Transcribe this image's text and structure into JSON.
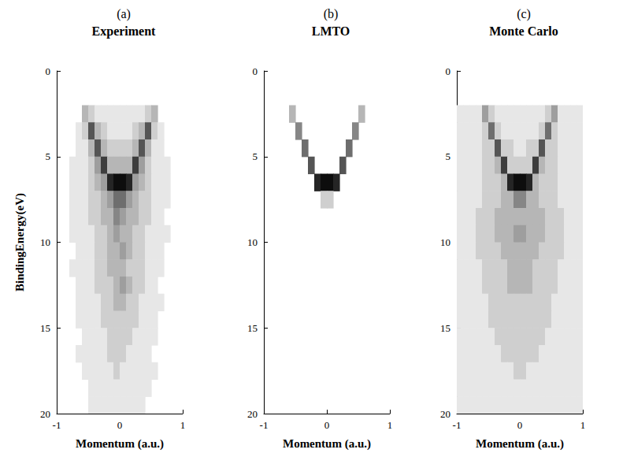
{
  "chart_data": [
    {
      "type": "heatmap",
      "panel_label": "(a)",
      "title": "Experiment",
      "xlabel": "Momentum (a.u.)",
      "ylabel": "BindingEnergy(eV)",
      "xlim": [
        -1,
        1
      ],
      "ylim": [
        20,
        0
      ],
      "xticks": [
        -1,
        0,
        1
      ],
      "yticks": [
        0,
        5,
        10,
        15,
        20
      ],
      "z_range": [
        0,
        10
      ],
      "x": [
        -0.95,
        -0.85,
        -0.75,
        -0.65,
        -0.55,
        -0.45,
        -0.35,
        -0.25,
        -0.15,
        -0.05,
        0.05,
        0.15,
        0.25,
        0.35,
        0.45,
        0.55,
        0.65,
        0.75,
        0.85,
        0.95
      ],
      "y": [
        0.5,
        1.5,
        2.5,
        3.5,
        4.5,
        5.5,
        6.5,
        7.5,
        8.5,
        9.5,
        10.5,
        11.5,
        12.5,
        13.5,
        14.5,
        15.5,
        16.5,
        17.5,
        18.5,
        19.5
      ],
      "z": [
        [
          0,
          0,
          0,
          0,
          0,
          0,
          0,
          0,
          0,
          0,
          0,
          0,
          0,
          0,
          0,
          0,
          0,
          0,
          0,
          0
        ],
        [
          0,
          0,
          0,
          0,
          0,
          0,
          0,
          0,
          0,
          0,
          0,
          0,
          0,
          0,
          0,
          0,
          0,
          0,
          0,
          0
        ],
        [
          0,
          0,
          0,
          0,
          3,
          2,
          1,
          1,
          1,
          1,
          1,
          1,
          1,
          1,
          2,
          3,
          0,
          0,
          0,
          0
        ],
        [
          0,
          0,
          0,
          1,
          2,
          7,
          3,
          2,
          1,
          1,
          1,
          1,
          2,
          3,
          7,
          2,
          1,
          0,
          0,
          0
        ],
        [
          0,
          0,
          0,
          1,
          1,
          3,
          7,
          3,
          2,
          2,
          2,
          2,
          3,
          7,
          3,
          1,
          1,
          0,
          0,
          0
        ],
        [
          0,
          0,
          1,
          1,
          1,
          2,
          4,
          8,
          3,
          3,
          3,
          3,
          8,
          4,
          2,
          1,
          1,
          1,
          0,
          0
        ],
        [
          0,
          0,
          1,
          1,
          1,
          2,
          3,
          4,
          9,
          10,
          10,
          9,
          4,
          3,
          2,
          1,
          1,
          1,
          0,
          0
        ],
        [
          0,
          0,
          1,
          1,
          1,
          2,
          2,
          3,
          4,
          6,
          6,
          4,
          3,
          2,
          2,
          1,
          1,
          1,
          0,
          0
        ],
        [
          0,
          0,
          1,
          1,
          1,
          2,
          2,
          3,
          3,
          5,
          4,
          3,
          3,
          2,
          2,
          1,
          1,
          0,
          0,
          0
        ],
        [
          0,
          0,
          1,
          1,
          1,
          1,
          2,
          2,
          3,
          4,
          3,
          3,
          2,
          2,
          1,
          1,
          1,
          1,
          0,
          0
        ],
        [
          0,
          0,
          0,
          1,
          1,
          1,
          2,
          2,
          3,
          3,
          4,
          3,
          2,
          2,
          1,
          1,
          1,
          0,
          0,
          0
        ],
        [
          0,
          0,
          1,
          1,
          1,
          1,
          2,
          2,
          3,
          3,
          3,
          2,
          2,
          2,
          1,
          1,
          1,
          0,
          0,
          0
        ],
        [
          0,
          0,
          0,
          1,
          1,
          1,
          2,
          2,
          2,
          3,
          4,
          3,
          2,
          2,
          1,
          1,
          0,
          0,
          0,
          0
        ],
        [
          0,
          0,
          0,
          1,
          1,
          1,
          1,
          2,
          2,
          3,
          3,
          2,
          2,
          1,
          1,
          1,
          1,
          0,
          0,
          0
        ],
        [
          0,
          0,
          0,
          1,
          1,
          1,
          1,
          2,
          2,
          2,
          2,
          2,
          2,
          1,
          1,
          1,
          0,
          0,
          0,
          0
        ],
        [
          0,
          0,
          0,
          0,
          1,
          1,
          1,
          1,
          2,
          2,
          2,
          2,
          1,
          1,
          1,
          1,
          0,
          0,
          0,
          0
        ],
        [
          0,
          0,
          0,
          1,
          1,
          1,
          1,
          1,
          2,
          2,
          2,
          1,
          1,
          1,
          1,
          0,
          0,
          0,
          0,
          0
        ],
        [
          0,
          0,
          0,
          0,
          1,
          1,
          1,
          1,
          1,
          2,
          1,
          1,
          1,
          1,
          1,
          1,
          0,
          0,
          0,
          0
        ],
        [
          0,
          0,
          0,
          0,
          0,
          1,
          1,
          1,
          1,
          1,
          1,
          1,
          1,
          1,
          1,
          0,
          0,
          0,
          0,
          0
        ],
        [
          0,
          0,
          0,
          0,
          0,
          1,
          1,
          1,
          1,
          1,
          1,
          1,
          1,
          1,
          0,
          0,
          0,
          0,
          0,
          0
        ]
      ]
    },
    {
      "type": "heatmap",
      "panel_label": "(b)",
      "title": "LMTO",
      "xlabel": "Momentum (a.u.)",
      "xlim": [
        -1,
        1
      ],
      "ylim": [
        20,
        0
      ],
      "xticks": [
        -1,
        0,
        1
      ],
      "yticks": [
        0,
        5,
        10,
        15,
        20
      ],
      "z_range": [
        0,
        10
      ],
      "x": [
        -0.95,
        -0.85,
        -0.75,
        -0.65,
        -0.55,
        -0.45,
        -0.35,
        -0.25,
        -0.15,
        -0.05,
        0.05,
        0.15,
        0.25,
        0.35,
        0.45,
        0.55,
        0.65,
        0.75,
        0.85,
        0.95
      ],
      "y": [
        0.5,
        1.5,
        2.5,
        3.5,
        4.5,
        5.5,
        6.5,
        7.5,
        8.5,
        9.5,
        10.5,
        11.5,
        12.5,
        13.5,
        14.5,
        15.5,
        16.5,
        17.5,
        18.5,
        19.5
      ],
      "z": [
        [
          0,
          0,
          0,
          0,
          0,
          0,
          0,
          0,
          0,
          0,
          0,
          0,
          0,
          0,
          0,
          0,
          0,
          0,
          0,
          0
        ],
        [
          0,
          0,
          0,
          0,
          0,
          0,
          0,
          0,
          0,
          0,
          0,
          0,
          0,
          0,
          0,
          0,
          0,
          0,
          0,
          0
        ],
        [
          0,
          0,
          0,
          0,
          3,
          0,
          0,
          0,
          0,
          0,
          0,
          0,
          0,
          0,
          0,
          3,
          0,
          0,
          0,
          0
        ],
        [
          0,
          0,
          0,
          0,
          0,
          5,
          0,
          0,
          0,
          0,
          0,
          0,
          0,
          0,
          5,
          0,
          0,
          0,
          0,
          0
        ],
        [
          0,
          0,
          0,
          0,
          0,
          0,
          6,
          0,
          0,
          0,
          0,
          0,
          0,
          6,
          0,
          0,
          0,
          0,
          0,
          0
        ],
        [
          0,
          0,
          0,
          0,
          0,
          0,
          0,
          7,
          0,
          0,
          0,
          0,
          7,
          0,
          0,
          0,
          0,
          0,
          0,
          0
        ],
        [
          0,
          0,
          0,
          0,
          0,
          0,
          0,
          0,
          9,
          10,
          10,
          9,
          0,
          0,
          0,
          0,
          0,
          0,
          0,
          0
        ],
        [
          0,
          0,
          0,
          0,
          0,
          0,
          0,
          0,
          0,
          2,
          2,
          0,
          0,
          0,
          0,
          0,
          0,
          0,
          0,
          0
        ],
        [
          0,
          0,
          0,
          0,
          0,
          0,
          0,
          0,
          0,
          0,
          0,
          0,
          0,
          0,
          0,
          0,
          0,
          0,
          0,
          0
        ],
        [
          0,
          0,
          0,
          0,
          0,
          0,
          0,
          0,
          0,
          0,
          0,
          0,
          0,
          0,
          0,
          0,
          0,
          0,
          0,
          0
        ],
        [
          0,
          0,
          0,
          0,
          0,
          0,
          0,
          0,
          0,
          0,
          0,
          0,
          0,
          0,
          0,
          0,
          0,
          0,
          0,
          0
        ],
        [
          0,
          0,
          0,
          0,
          0,
          0,
          0,
          0,
          0,
          0,
          0,
          0,
          0,
          0,
          0,
          0,
          0,
          0,
          0,
          0
        ],
        [
          0,
          0,
          0,
          0,
          0,
          0,
          0,
          0,
          0,
          0,
          0,
          0,
          0,
          0,
          0,
          0,
          0,
          0,
          0,
          0
        ],
        [
          0,
          0,
          0,
          0,
          0,
          0,
          0,
          0,
          0,
          0,
          0,
          0,
          0,
          0,
          0,
          0,
          0,
          0,
          0,
          0
        ],
        [
          0,
          0,
          0,
          0,
          0,
          0,
          0,
          0,
          0,
          0,
          0,
          0,
          0,
          0,
          0,
          0,
          0,
          0,
          0,
          0
        ],
        [
          0,
          0,
          0,
          0,
          0,
          0,
          0,
          0,
          0,
          0,
          0,
          0,
          0,
          0,
          0,
          0,
          0,
          0,
          0,
          0
        ],
        [
          0,
          0,
          0,
          0,
          0,
          0,
          0,
          0,
          0,
          0,
          0,
          0,
          0,
          0,
          0,
          0,
          0,
          0,
          0,
          0
        ],
        [
          0,
          0,
          0,
          0,
          0,
          0,
          0,
          0,
          0,
          0,
          0,
          0,
          0,
          0,
          0,
          0,
          0,
          0,
          0,
          0
        ],
        [
          0,
          0,
          0,
          0,
          0,
          0,
          0,
          0,
          0,
          0,
          0,
          0,
          0,
          0,
          0,
          0,
          0,
          0,
          0,
          0
        ],
        [
          0,
          0,
          0,
          0,
          0,
          0,
          0,
          0,
          0,
          0,
          0,
          0,
          0,
          0,
          0,
          0,
          0,
          0,
          0,
          0
        ]
      ]
    },
    {
      "type": "heatmap",
      "panel_label": "(c)",
      "title": "Monte Carlo",
      "xlabel": "Momentum (a.u.)",
      "xlim": [
        -1,
        1
      ],
      "ylim": [
        20,
        0
      ],
      "xticks": [
        -1,
        0,
        1
      ],
      "yticks": [
        0,
        5,
        10,
        15,
        20
      ],
      "z_range": [
        0,
        10
      ],
      "x": [
        -0.95,
        -0.85,
        -0.75,
        -0.65,
        -0.55,
        -0.45,
        -0.35,
        -0.25,
        -0.15,
        -0.05,
        0.05,
        0.15,
        0.25,
        0.35,
        0.45,
        0.55,
        0.65,
        0.75,
        0.85,
        0.95
      ],
      "y": [
        0.5,
        1.5,
        2.5,
        3.5,
        4.5,
        5.5,
        6.5,
        7.5,
        8.5,
        9.5,
        10.5,
        11.5,
        12.5,
        13.5,
        14.5,
        15.5,
        16.5,
        17.5,
        18.5,
        19.5
      ],
      "z": [
        [
          0,
          0,
          0,
          0,
          0,
          0,
          0,
          0,
          0,
          0,
          0,
          0,
          0,
          0,
          0,
          0,
          0,
          0,
          0,
          0
        ],
        [
          0,
          0,
          0,
          0,
          0,
          0,
          0,
          0,
          0,
          0,
          0,
          0,
          0,
          0,
          0,
          0,
          0,
          0,
          0,
          0
        ],
        [
          1,
          1,
          1,
          1,
          4,
          2,
          1,
          1,
          1,
          1,
          1,
          1,
          1,
          1,
          2,
          4,
          1,
          1,
          1,
          1
        ],
        [
          1,
          1,
          1,
          1,
          2,
          6,
          2,
          1,
          1,
          1,
          1,
          1,
          1,
          2,
          6,
          2,
          1,
          1,
          1,
          1
        ],
        [
          1,
          1,
          1,
          1,
          2,
          2,
          7,
          2,
          2,
          1,
          1,
          2,
          2,
          7,
          2,
          2,
          1,
          1,
          1,
          1
        ],
        [
          1,
          1,
          1,
          1,
          2,
          2,
          3,
          8,
          2,
          2,
          2,
          2,
          8,
          3,
          2,
          2,
          1,
          1,
          1,
          1
        ],
        [
          1,
          1,
          1,
          1,
          2,
          2,
          2,
          3,
          9,
          10,
          10,
          9,
          3,
          2,
          2,
          2,
          1,
          1,
          1,
          1
        ],
        [
          1,
          1,
          1,
          1,
          2,
          2,
          2,
          3,
          3,
          5,
          5,
          3,
          3,
          2,
          2,
          2,
          1,
          1,
          1,
          1
        ],
        [
          1,
          1,
          1,
          2,
          2,
          2,
          3,
          3,
          3,
          3,
          3,
          3,
          3,
          3,
          2,
          2,
          2,
          1,
          1,
          1
        ],
        [
          1,
          1,
          1,
          2,
          2,
          2,
          3,
          3,
          3,
          4,
          4,
          3,
          3,
          3,
          2,
          2,
          2,
          1,
          1,
          1
        ],
        [
          1,
          1,
          1,
          2,
          2,
          2,
          2,
          3,
          3,
          3,
          3,
          3,
          3,
          2,
          2,
          2,
          2,
          1,
          1,
          1
        ],
        [
          1,
          1,
          1,
          1,
          2,
          2,
          2,
          2,
          3,
          3,
          3,
          3,
          2,
          2,
          2,
          2,
          1,
          1,
          1,
          1
        ],
        [
          1,
          1,
          1,
          1,
          2,
          2,
          2,
          2,
          3,
          3,
          3,
          3,
          2,
          2,
          2,
          2,
          1,
          1,
          1,
          1
        ],
        [
          1,
          1,
          1,
          1,
          1,
          2,
          2,
          2,
          2,
          2,
          2,
          2,
          2,
          2,
          2,
          1,
          1,
          1,
          1,
          1
        ],
        [
          1,
          1,
          1,
          1,
          1,
          2,
          2,
          2,
          2,
          2,
          2,
          2,
          2,
          2,
          2,
          1,
          1,
          1,
          1,
          1
        ],
        [
          1,
          1,
          1,
          1,
          1,
          1,
          2,
          2,
          2,
          2,
          2,
          2,
          2,
          2,
          1,
          1,
          1,
          1,
          1,
          1
        ],
        [
          1,
          1,
          1,
          1,
          1,
          1,
          1,
          2,
          2,
          2,
          2,
          2,
          2,
          1,
          1,
          1,
          1,
          1,
          1,
          1
        ],
        [
          1,
          1,
          1,
          1,
          1,
          1,
          1,
          1,
          1,
          2,
          2,
          1,
          1,
          1,
          1,
          1,
          1,
          1,
          1,
          1
        ],
        [
          1,
          1,
          1,
          1,
          1,
          1,
          1,
          1,
          1,
          1,
          1,
          1,
          1,
          1,
          1,
          1,
          1,
          1,
          1,
          1
        ],
        [
          1,
          1,
          1,
          1,
          1,
          1,
          1,
          1,
          1,
          1,
          1,
          1,
          1,
          1,
          1,
          1,
          1,
          1,
          1,
          1
        ]
      ]
    }
  ]
}
